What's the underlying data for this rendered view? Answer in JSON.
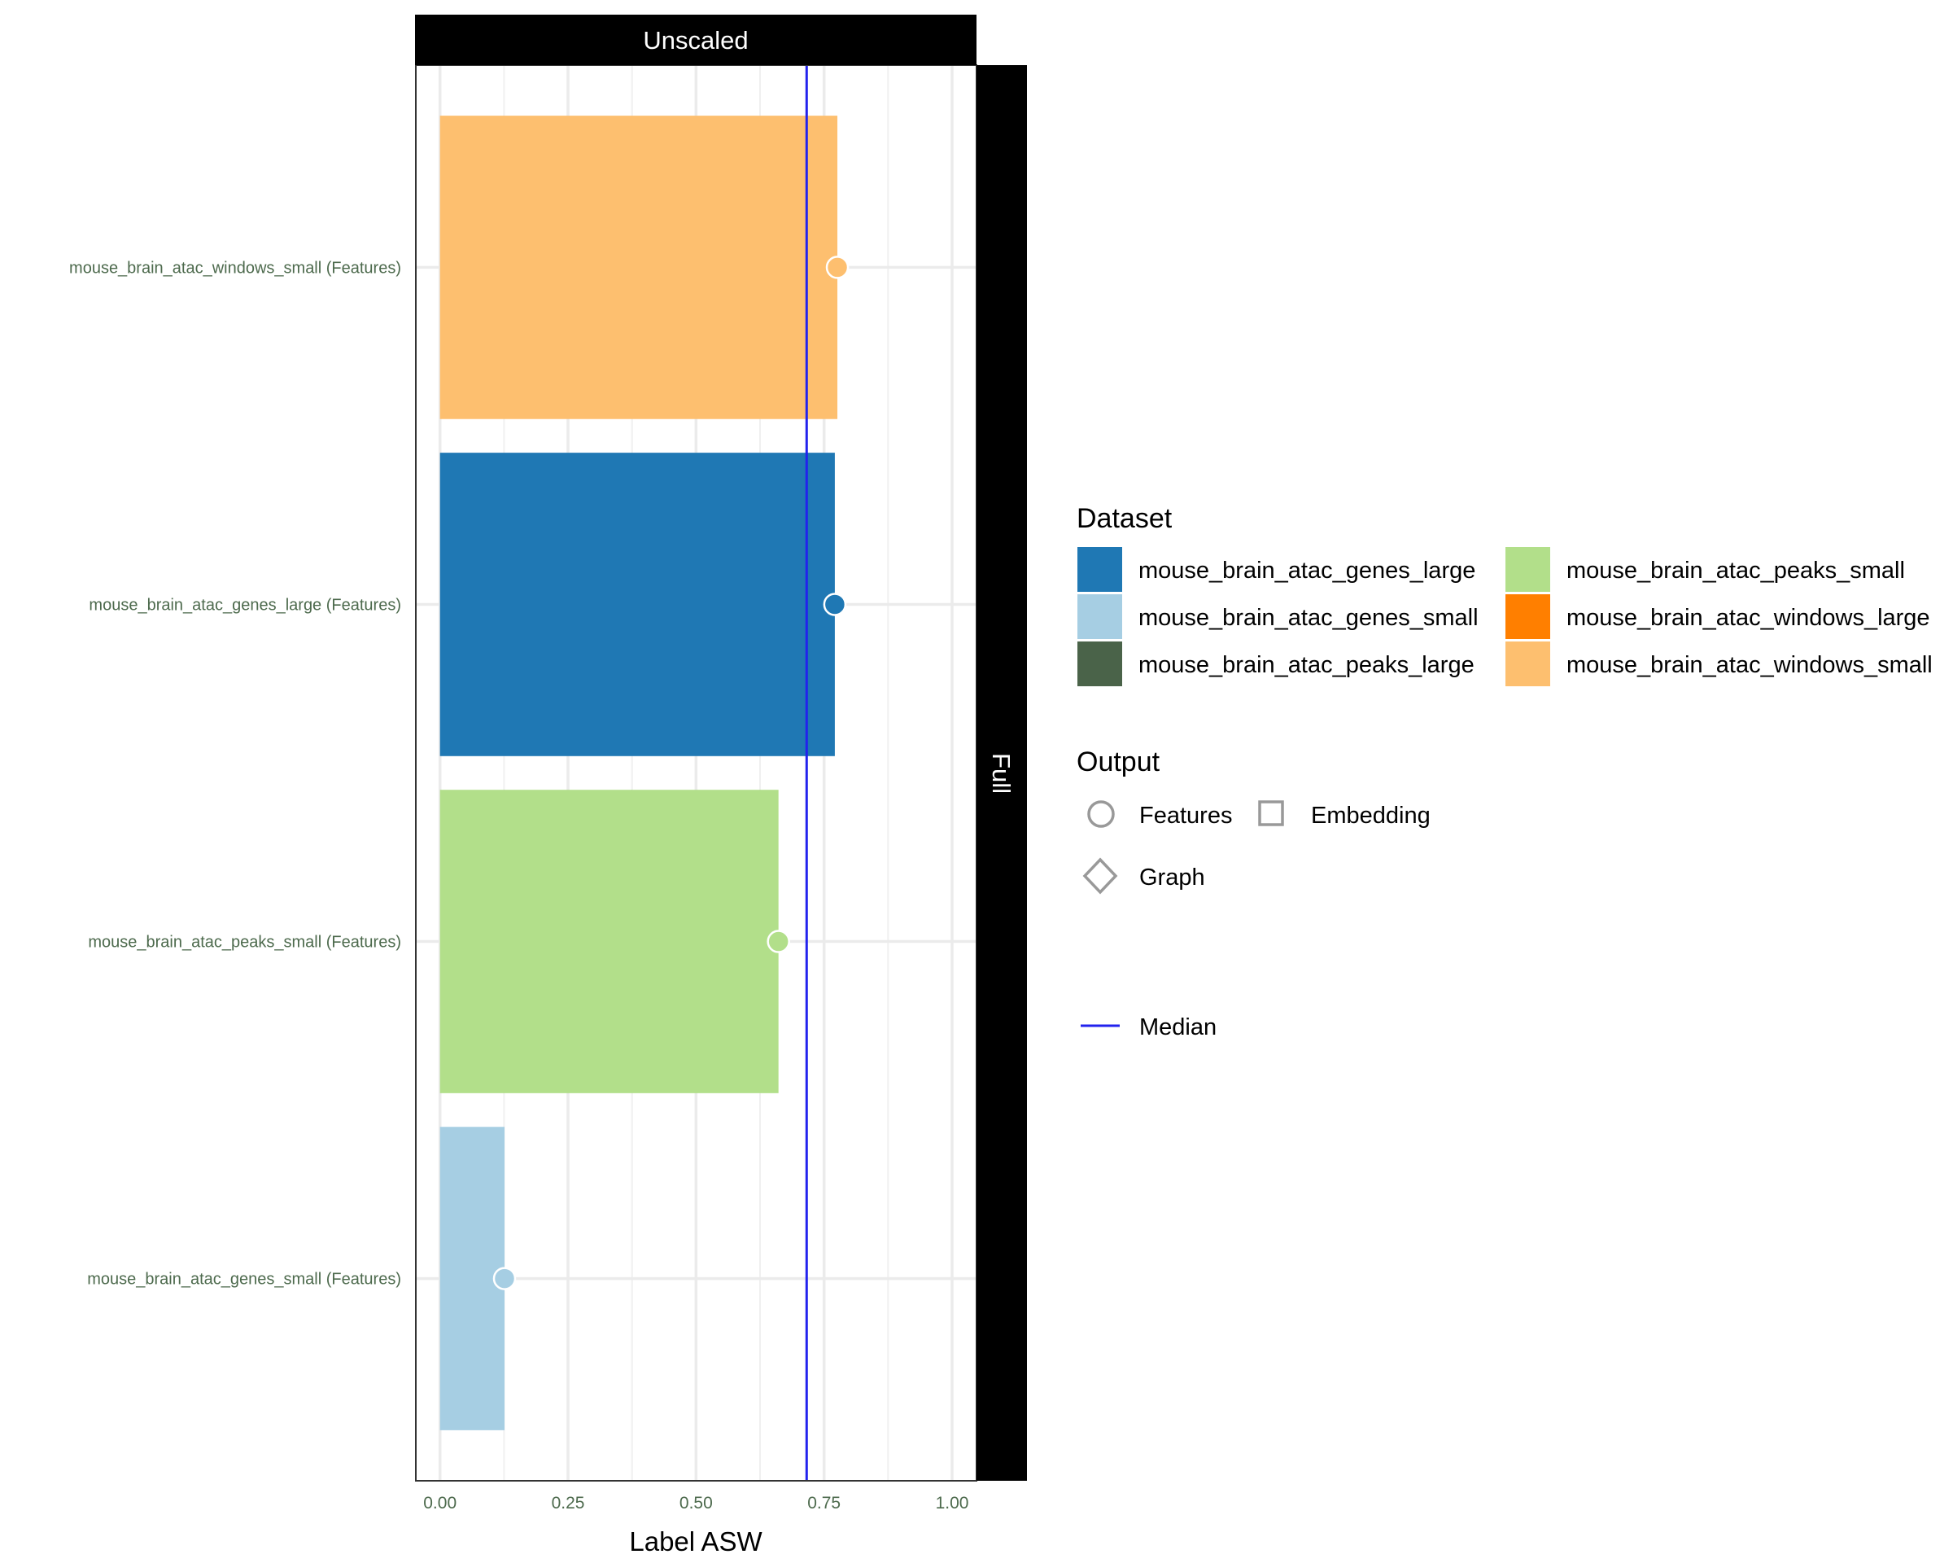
{
  "chart_data": {
    "type": "bar",
    "title": "",
    "facet_top": "Unscaled",
    "facet_right": "Full",
    "xlabel": "Label ASW",
    "ylabel": "",
    "xlim": [
      -0.05,
      1.05
    ],
    "x_ticks": [
      "0.00",
      "0.25",
      "0.50",
      "0.75",
      "1.00"
    ],
    "x_tick_values": [
      0,
      0.25,
      0.5,
      0.75,
      1.0
    ],
    "grid": true,
    "categories": [
      "mouse_brain_atac_windows_small (Features)",
      "mouse_brain_atac_genes_large (Features)",
      "mouse_brain_atac_peaks_small (Features)",
      "mouse_brain_atac_genes_small (Features)"
    ],
    "values": [
      0.776,
      0.771,
      0.661,
      0.126
    ],
    "bar_datasets": [
      "mouse_brain_atac_windows_small",
      "mouse_brain_atac_genes_large",
      "mouse_brain_atac_peaks_small",
      "mouse_brain_atac_genes_small"
    ],
    "point_shapes": [
      "Features",
      "Features",
      "Features",
      "Features"
    ],
    "median": 0.716,
    "median_color": "#2222ee",
    "legend_placement": "right",
    "legend": {
      "dataset_title": "Dataset",
      "datasets": [
        {
          "label": "mouse_brain_atac_genes_large",
          "color": "#1f78b4"
        },
        {
          "label": "mouse_brain_atac_genes_small",
          "color": "#a6cee3"
        },
        {
          "label": "mouse_brain_atac_peaks_large",
          "color": "#4a6349"
        },
        {
          "label": "mouse_brain_atac_peaks_small",
          "color": "#b2df8a"
        },
        {
          "label": "mouse_brain_atac_windows_large",
          "color": "#ff7f00"
        },
        {
          "label": "mouse_brain_atac_windows_small",
          "color": "#fdbf6f"
        }
      ],
      "output_title": "Output",
      "outputs": [
        {
          "label": "Features",
          "shape": "circle"
        },
        {
          "label": "Embedding",
          "shape": "square"
        },
        {
          "label": "Graph",
          "shape": "diamond"
        }
      ],
      "median_label": "Median"
    }
  }
}
